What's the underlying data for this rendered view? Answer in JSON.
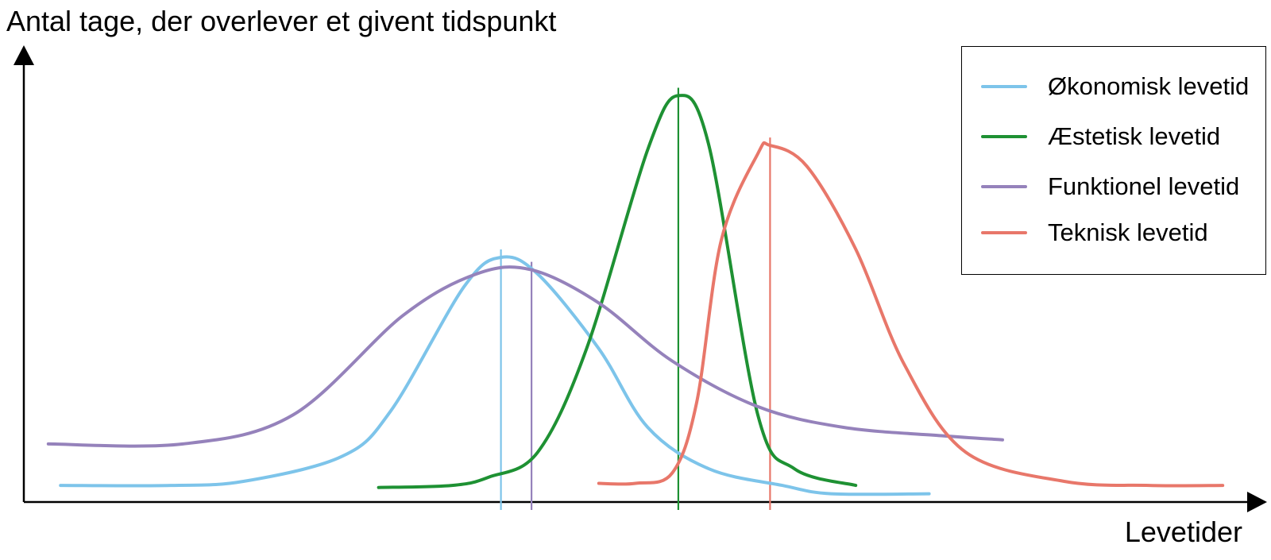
{
  "chart_data": {
    "type": "line",
    "ylabel": "Antal tage, der overlever et givent tidspunkt",
    "xlabel": "Levetider",
    "grid": false,
    "legend_position": "top-right",
    "xlim": [
      0,
      100
    ],
    "ylim": [
      0,
      100
    ],
    "series": [
      {
        "name": "Økonomisk levetid",
        "color": "#7DC4EA",
        "mean": 39,
        "x": [
          3,
          12,
          18,
          26,
          30,
          36,
          39,
          42,
          47,
          51,
          56,
          62,
          66,
          74
        ],
        "y": [
          4,
          4,
          5,
          11,
          22,
          52,
          59,
          55,
          37,
          18,
          8,
          4,
          2,
          2
        ]
      },
      {
        "name": "Æstetisk levetid",
        "color": "#1E9133",
        "mean": 53.5,
        "x": [
          29,
          35,
          38,
          42,
          46,
          51,
          53.5,
          56,
          60,
          63,
          68
        ],
        "y": [
          3.5,
          4,
          6,
          12,
          37,
          85,
          98,
          86,
          21,
          8,
          4
        ]
      },
      {
        "name": "Funktionel levetid",
        "color": "#9582BB",
        "mean": 41.5,
        "x": [
          2,
          13,
          22,
          31,
          37,
          41.5,
          47,
          53,
          60,
          67,
          75,
          80
        ],
        "y": [
          14,
          14,
          21,
          45,
          55,
          56,
          48,
          34,
          23,
          18,
          16,
          15
        ]
      },
      {
        "name": "Teknisk levetid",
        "color": "#E8776A",
        "mean": 61,
        "x": [
          47,
          50,
          53,
          55,
          57,
          60,
          61,
          64,
          68,
          72,
          77,
          85,
          92,
          98
        ],
        "y": [
          4.5,
          4.5,
          7,
          24,
          63,
          84,
          86,
          81,
          61,
          33,
          12,
          5,
          4,
          4
        ]
      }
    ]
  }
}
